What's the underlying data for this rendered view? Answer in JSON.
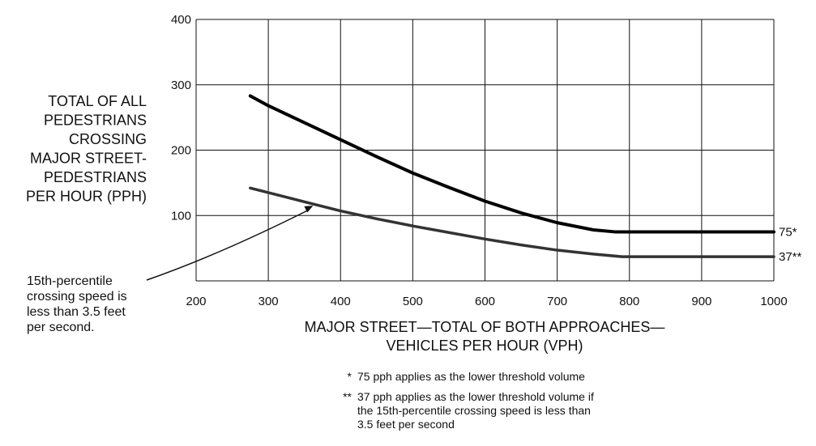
{
  "chart_data": {
    "type": "line",
    "xlabel": [
      "MAJOR STREET—TOTAL OF BOTH APPROACHES—",
      "VEHICLES PER HOUR (VPH)"
    ],
    "ylabel": [
      "TOTAL OF ALL",
      "PEDESTRIANS",
      "CROSSING",
      "MAJOR STREET-",
      "PEDESTRIANS",
      "PER HOUR (PPH)"
    ],
    "xlim": [
      200,
      1000
    ],
    "ylim": [
      0,
      400
    ],
    "x_ticks": [
      200,
      300,
      400,
      500,
      600,
      700,
      800,
      900,
      1000
    ],
    "y_ticks": [
      100,
      200,
      300,
      400
    ],
    "grid": true,
    "series": [
      {
        "end_label": "75*",
        "color": "#000000",
        "points": [
          [
            275,
            283
          ],
          [
            300,
            268
          ],
          [
            350,
            242
          ],
          [
            400,
            216
          ],
          [
            450,
            190
          ],
          [
            500,
            165
          ],
          [
            550,
            143
          ],
          [
            600,
            122
          ],
          [
            650,
            104
          ],
          [
            700,
            89
          ],
          [
            750,
            78
          ],
          [
            780,
            75
          ],
          [
            850,
            75
          ],
          [
            1000,
            75
          ]
        ]
      },
      {
        "end_label": "37**",
        "color": "#333333",
        "points": [
          [
            275,
            142
          ],
          [
            300,
            135
          ],
          [
            350,
            121
          ],
          [
            400,
            107
          ],
          [
            450,
            95
          ],
          [
            500,
            84
          ],
          [
            550,
            74
          ],
          [
            600,
            64
          ],
          [
            650,
            55
          ],
          [
            700,
            47
          ],
          [
            750,
            41
          ],
          [
            790,
            37
          ],
          [
            850,
            37
          ],
          [
            1000,
            37
          ]
        ]
      }
    ],
    "annotation": {
      "text": [
        "15th-percentile",
        "crossing speed is",
        "less than 3.5 feet",
        "per second."
      ],
      "arrow_to": [
        362,
        115
      ]
    },
    "notes": [
      {
        "marker": "*",
        "lines": [
          "75 pph applies as the lower threshold volume"
        ]
      },
      {
        "marker": "**",
        "lines": [
          "37 pph applies as the lower threshold volume if",
          "the 15th-percentile crossing speed is less than",
          "3.5 feet per second"
        ]
      }
    ]
  }
}
